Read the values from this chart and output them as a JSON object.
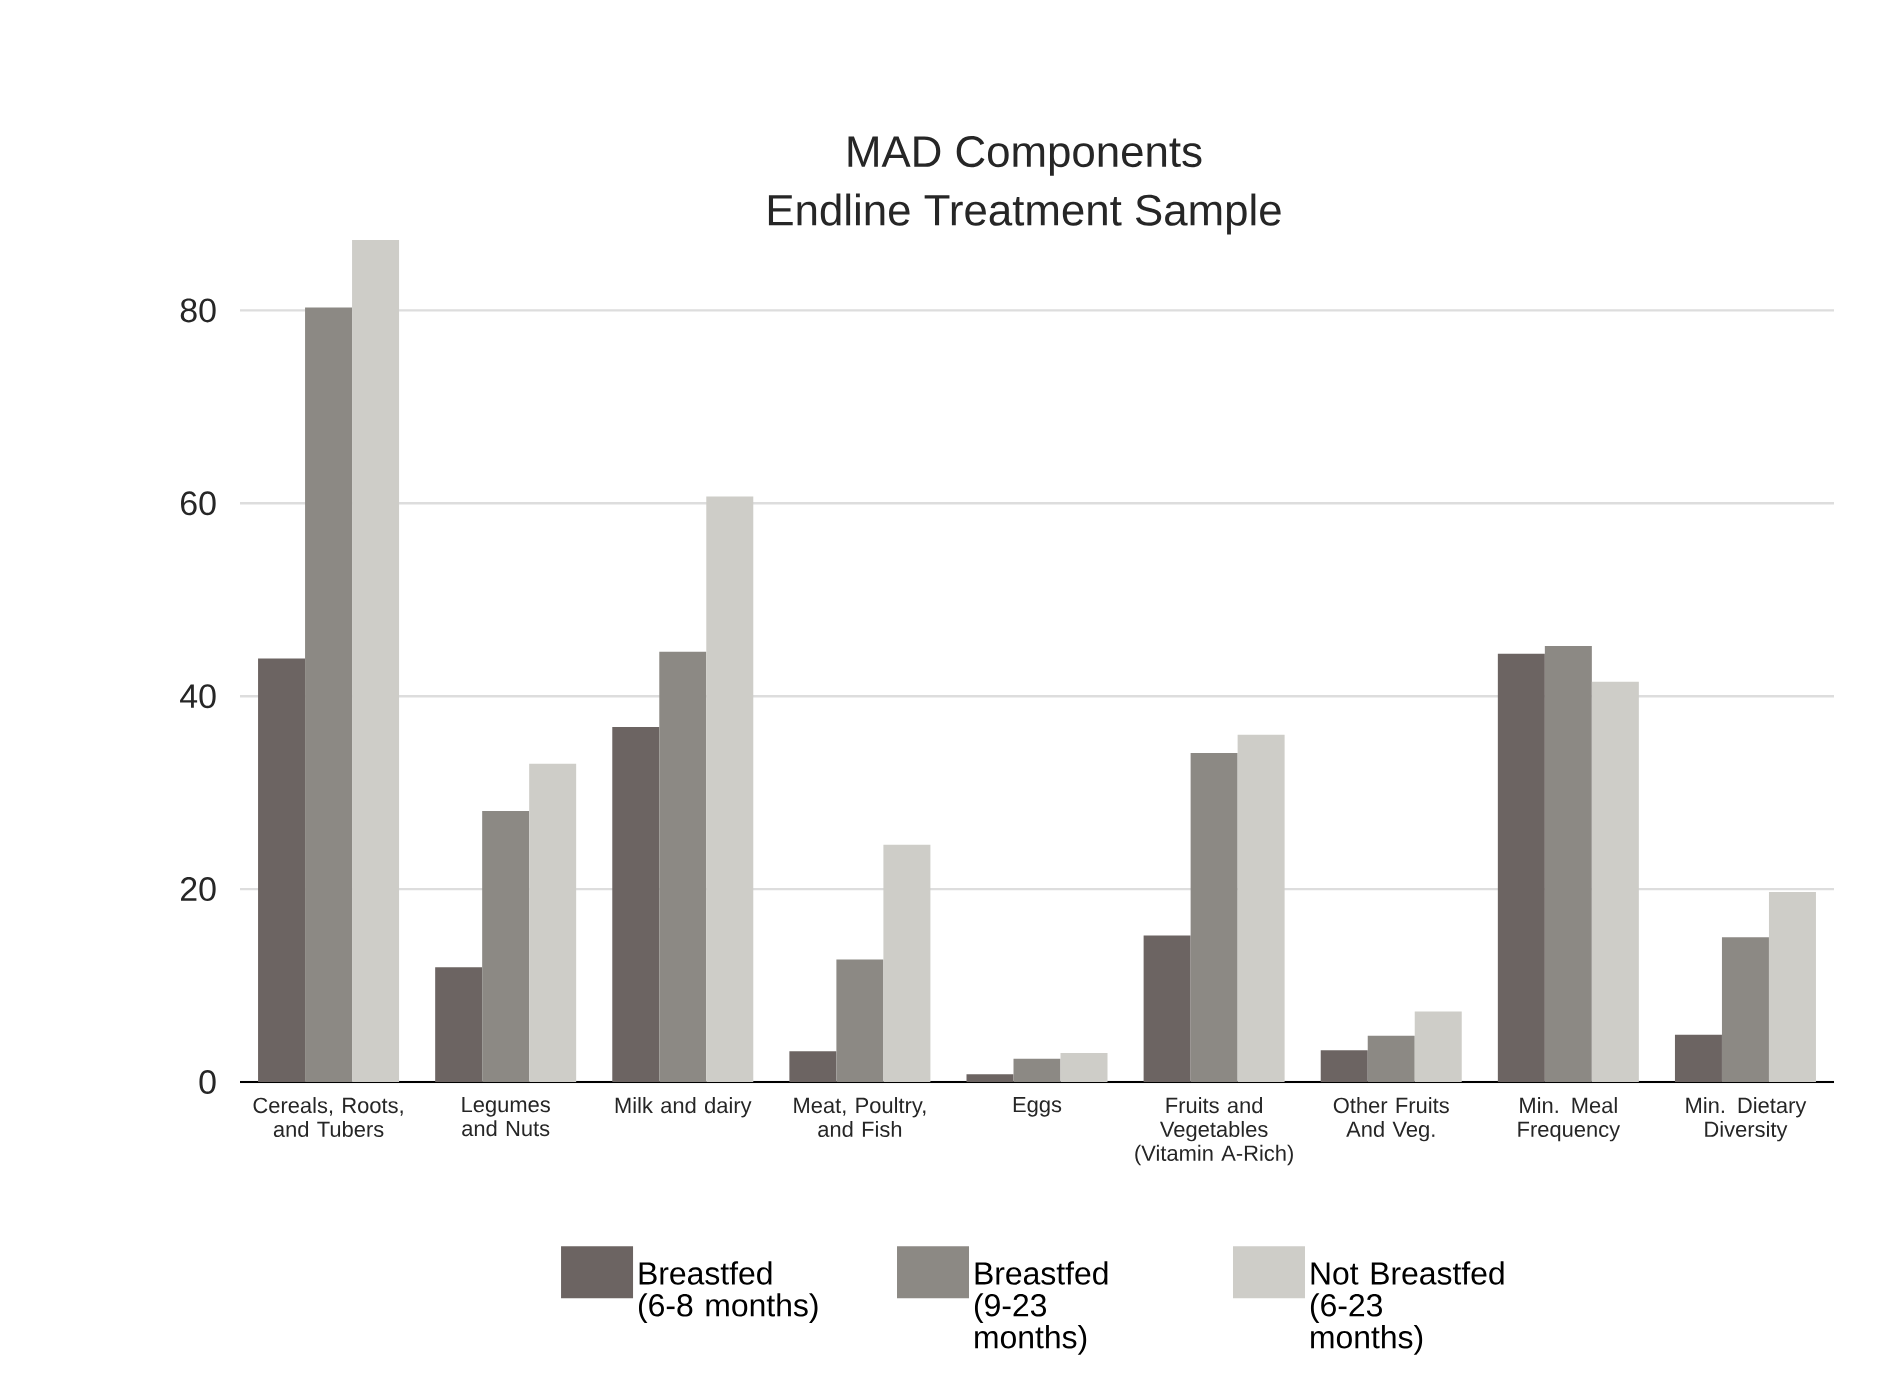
{
  "chart_data": {
    "type": "bar",
    "title": "MAD Components",
    "subtitle": "Endline Treatment Sample",
    "categories": [
      "Cereals, Roots, and Tubers",
      "Legumes and Nuts",
      "Milk and dairy",
      "Meat, Poultry, and Fish",
      "Eggs",
      "Fruits and Vegetables (Vitamin A-Rich)",
      "Other Fruits And Veg.",
      "Min. Meal Frequency",
      "Min. Dietary Diversity"
    ],
    "series": [
      {
        "name": "Breastfed (6-8 months)",
        "color": "#6c6462",
        "values": [
          43.9,
          11.9,
          36.8,
          3.2,
          0.8,
          15.2,
          3.3,
          44.4,
          4.9
        ]
      },
      {
        "name": "Breastfed (9-23 months)",
        "color": "#8c8984",
        "values": [
          80.3,
          28.1,
          44.6,
          12.7,
          2.4,
          34.1,
          4.8,
          45.2,
          15.0
        ]
      },
      {
        "name": "Not Breastfed (6-23 months)",
        "color": "#cecdc8",
        "values": [
          87.3,
          33.0,
          60.7,
          24.6,
          3.0,
          36.0,
          7.3,
          41.5,
          19.7
        ]
      }
    ],
    "ylim": [
      0,
      87.3
    ],
    "yticks": [
      0,
      20,
      40,
      60,
      80
    ],
    "grid": "y",
    "legend": "bottom"
  }
}
